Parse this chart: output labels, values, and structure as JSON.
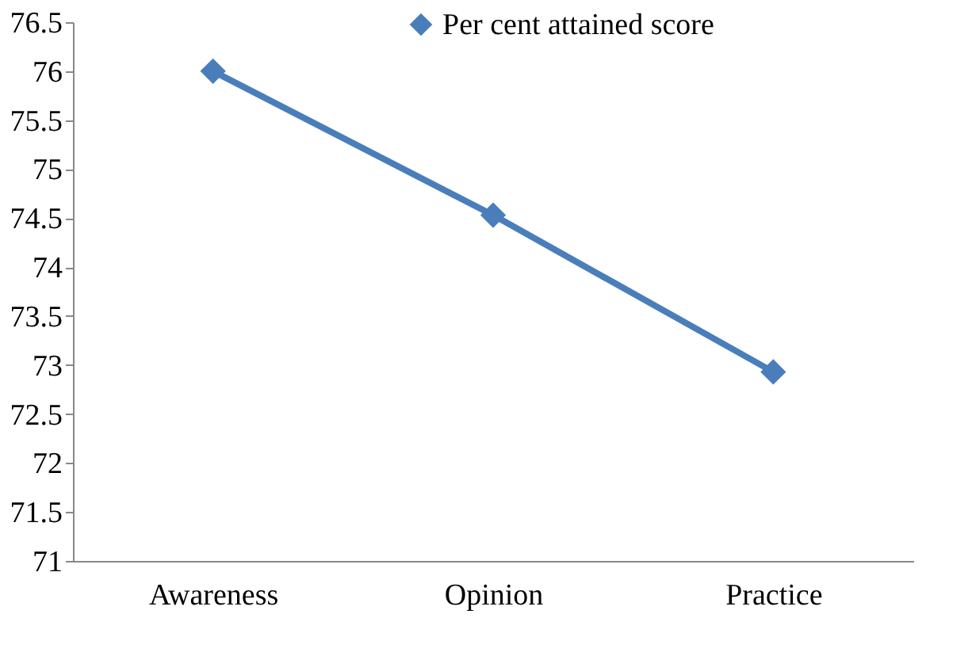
{
  "chart_data": {
    "type": "line",
    "categories": [
      "Awareness",
      "Opinion",
      "Practice"
    ],
    "series": [
      {
        "name": "Per cent attained score",
        "color": "#4a7ebb",
        "values": [
          76,
          74.53,
          72.93
        ]
      }
    ],
    "ylim": [
      71,
      76.5
    ],
    "yticks": [
      71,
      71.5,
      72,
      72.5,
      73,
      73.5,
      74,
      74.5,
      75,
      75.5,
      76,
      76.5
    ],
    "marker": "diamond",
    "line_style": "solid",
    "legend": "top",
    "grid": false
  }
}
